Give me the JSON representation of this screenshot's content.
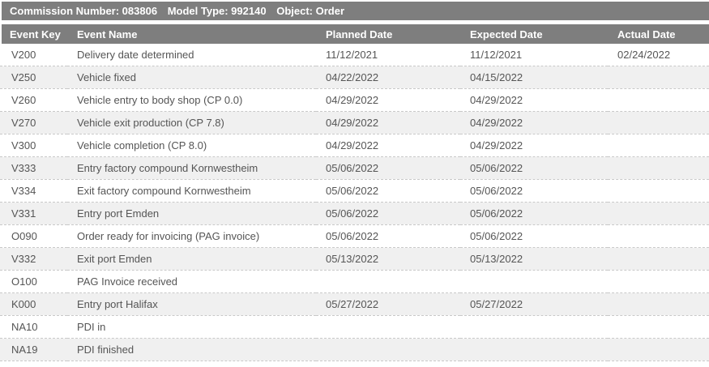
{
  "title_bar": {
    "segments": [
      "Commission Number: 083806",
      "Model Type: 992140",
      "Object: Order"
    ]
  },
  "table": {
    "columns": [
      "Event Key",
      "Event Name",
      "Planned Date",
      "Expected Date",
      "Actual Date"
    ],
    "rows": [
      {
        "event_key": "V200",
        "event_name": "Delivery date determined",
        "planned_date": "11/12/2021",
        "expected_date": "11/12/2021",
        "actual_date": "02/24/2022"
      },
      {
        "event_key": "V250",
        "event_name": "Vehicle fixed",
        "planned_date": "04/22/2022",
        "expected_date": "04/15/2022",
        "actual_date": ""
      },
      {
        "event_key": "V260",
        "event_name": "Vehicle entry to body shop (CP 0.0)",
        "planned_date": "04/29/2022",
        "expected_date": "04/29/2022",
        "actual_date": ""
      },
      {
        "event_key": "V270",
        "event_name": "Vehicle exit production (CP 7.8)",
        "planned_date": "04/29/2022",
        "expected_date": "04/29/2022",
        "actual_date": ""
      },
      {
        "event_key": "V300",
        "event_name": "Vehicle completion (CP 8.0)",
        "planned_date": "04/29/2022",
        "expected_date": "04/29/2022",
        "actual_date": ""
      },
      {
        "event_key": "V333",
        "event_name": "Entry factory compound Kornwestheim",
        "planned_date": "05/06/2022",
        "expected_date": "05/06/2022",
        "actual_date": ""
      },
      {
        "event_key": "V334",
        "event_name": "Exit factory compound Kornwestheim",
        "planned_date": "05/06/2022",
        "expected_date": "05/06/2022",
        "actual_date": ""
      },
      {
        "event_key": "V331",
        "event_name": "Entry port Emden",
        "planned_date": "05/06/2022",
        "expected_date": "05/06/2022",
        "actual_date": ""
      },
      {
        "event_key": "O090",
        "event_name": "Order ready for invoicing (PAG invoice)",
        "planned_date": "05/06/2022",
        "expected_date": "05/06/2022",
        "actual_date": ""
      },
      {
        "event_key": "V332",
        "event_name": "Exit port Emden",
        "planned_date": "05/13/2022",
        "expected_date": "05/13/2022",
        "actual_date": ""
      },
      {
        "event_key": "O100",
        "event_name": "PAG Invoice received",
        "planned_date": "",
        "expected_date": "",
        "actual_date": ""
      },
      {
        "event_key": "K000",
        "event_name": "Entry port Halifax",
        "planned_date": "05/27/2022",
        "expected_date": "05/27/2022",
        "actual_date": ""
      },
      {
        "event_key": "NA10",
        "event_name": "PDI in",
        "planned_date": "",
        "expected_date": "",
        "actual_date": ""
      },
      {
        "event_key": "NA19",
        "event_name": "PDI finished",
        "planned_date": "",
        "expected_date": "",
        "actual_date": ""
      }
    ]
  },
  "colors": {
    "bar_background": "#7e7e7e",
    "bar_text": "#ffffff",
    "row_text": "#555555",
    "stripe_background": "#f0f0f0",
    "row_divider": "#c9c9c9"
  }
}
